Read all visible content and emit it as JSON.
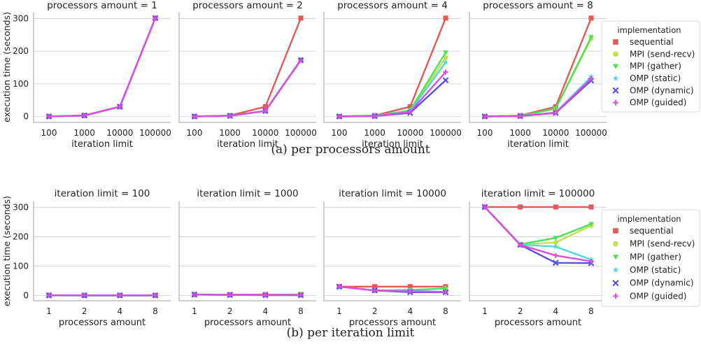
{
  "chart_data": [
    {
      "type": "line",
      "group": "a",
      "ylabel": "execution time (seconds)",
      "xlabel": "iteration limit",
      "x_ticks": [
        "100",
        "1000",
        "10000",
        "100000"
      ],
      "y_ticks": [
        0,
        100,
        200,
        300
      ],
      "ylim": [
        -18,
        320
      ],
      "panels": [
        {
          "title": "processors amount = 1",
          "series": [
            {
              "name": "sequential",
              "values": [
                0.3,
                3,
                30,
                301
              ]
            },
            {
              "name": "MPI (send-recv)",
              "values": [
                0.3,
                3,
                30,
                301
              ]
            },
            {
              "name": "MPI (gather)",
              "values": [
                0.3,
                3,
                30,
                301
              ]
            },
            {
              "name": "OMP (static)",
              "values": [
                0.3,
                3,
                30,
                301
              ]
            },
            {
              "name": "OMP (dynamic)",
              "values": [
                0.3,
                3,
                30,
                301
              ]
            },
            {
              "name": "OMP (guided)",
              "values": [
                0.3,
                3,
                30,
                301
              ]
            }
          ]
        },
        {
          "title": "processors amount = 2",
          "series": [
            {
              "name": "sequential",
              "values": [
                0.3,
                3,
                30,
                301
              ]
            },
            {
              "name": "MPI (send-recv)",
              "values": [
                0.2,
                2,
                17,
                174
              ]
            },
            {
              "name": "MPI (gather)",
              "values": [
                0.2,
                2,
                17,
                174
              ]
            },
            {
              "name": "OMP (static)",
              "values": [
                0.2,
                2,
                17,
                173
              ]
            },
            {
              "name": "OMP (dynamic)",
              "values": [
                0.2,
                2,
                17,
                172
              ]
            },
            {
              "name": "OMP (guided)",
              "values": [
                0.2,
                2,
                17,
                172
              ]
            }
          ]
        },
        {
          "title": "processors amount = 4",
          "series": [
            {
              "name": "sequential",
              "values": [
                0.3,
                3,
                30,
                301
              ]
            },
            {
              "name": "MPI (send-recv)",
              "values": [
                0.2,
                2,
                18,
                180
              ]
            },
            {
              "name": "MPI (gather)",
              "values": [
                0.2,
                2,
                19,
                196
              ]
            },
            {
              "name": "OMP (static)",
              "values": [
                0.2,
                2,
                16,
                166
              ]
            },
            {
              "name": "OMP (dynamic)",
              "values": [
                0.1,
                1,
                11,
                111
              ]
            },
            {
              "name": "OMP (guided)",
              "values": [
                0.1,
                1,
                14,
                136
              ]
            }
          ]
        },
        {
          "title": "processors amount = 8",
          "series": [
            {
              "name": "sequential",
              "values": [
                0.3,
                3,
                30,
                301
              ]
            },
            {
              "name": "MPI (send-recv)",
              "values": [
                0.2,
                2,
                24,
                238
              ]
            },
            {
              "name": "MPI (gather)",
              "values": [
                0.2,
                2,
                24,
                243
              ]
            },
            {
              "name": "OMP (static)",
              "values": [
                0.1,
                1,
                12,
                122
              ]
            },
            {
              "name": "OMP (dynamic)",
              "values": [
                0.1,
                1,
                11,
                110
              ]
            },
            {
              "name": "OMP (guided)",
              "values": [
                0.1,
                1,
                12,
                116
              ]
            }
          ]
        }
      ],
      "legend": {
        "title": "implementation",
        "placement": "right"
      }
    },
    {
      "type": "line",
      "group": "b",
      "ylabel": "execution time (seconds)",
      "xlabel": "processors amount",
      "x_ticks": [
        "1",
        "2",
        "4",
        "8"
      ],
      "y_ticks": [
        0,
        100,
        200,
        300
      ],
      "ylim": [
        -18,
        320
      ],
      "panels": [
        {
          "title": "iteration limit = 100",
          "series": [
            {
              "name": "sequential",
              "values": [
                0.3,
                0.3,
                0.3,
                0.3
              ]
            },
            {
              "name": "MPI (send-recv)",
              "values": [
                0.3,
                0.2,
                0.2,
                0.2
              ]
            },
            {
              "name": "MPI (gather)",
              "values": [
                0.3,
                0.2,
                0.2,
                0.2
              ]
            },
            {
              "name": "OMP (static)",
              "values": [
                0.3,
                0.2,
                0.2,
                0.1
              ]
            },
            {
              "name": "OMP (dynamic)",
              "values": [
                0.3,
                0.2,
                0.1,
                0.1
              ]
            },
            {
              "name": "OMP (guided)",
              "values": [
                0.3,
                0.2,
                0.1,
                0.1
              ]
            }
          ]
        },
        {
          "title": "iteration limit = 1000",
          "series": [
            {
              "name": "sequential",
              "values": [
                3,
                3,
                3,
                3
              ]
            },
            {
              "name": "MPI (send-recv)",
              "values": [
                3,
                2,
                2,
                2.4
              ]
            },
            {
              "name": "MPI (gather)",
              "values": [
                3,
                2,
                2,
                2.4
              ]
            },
            {
              "name": "OMP (static)",
              "values": [
                3,
                2,
                1.7,
                1.2
              ]
            },
            {
              "name": "OMP (dynamic)",
              "values": [
                3,
                1.7,
                1.1,
                1.1
              ]
            },
            {
              "name": "OMP (guided)",
              "values": [
                3,
                1.7,
                1.4,
                1.2
              ]
            }
          ]
        },
        {
          "title": "iteration limit = 10000",
          "series": [
            {
              "name": "sequential",
              "values": [
                30,
                30,
                30,
                30
              ]
            },
            {
              "name": "MPI (send-recv)",
              "values": [
                30,
                17,
                18,
                24
              ]
            },
            {
              "name": "MPI (gather)",
              "values": [
                30,
                17,
                19,
                24
              ]
            },
            {
              "name": "OMP (static)",
              "values": [
                30,
                17,
                16,
                12
              ]
            },
            {
              "name": "OMP (dynamic)",
              "values": [
                30,
                17,
                11,
                11
              ]
            },
            {
              "name": "OMP (guided)",
              "values": [
                30,
                17,
                14,
                12
              ]
            }
          ]
        },
        {
          "title": "iteration limit = 100000",
          "series": [
            {
              "name": "sequential",
              "values": [
                301,
                301,
                301,
                301
              ]
            },
            {
              "name": "MPI (send-recv)",
              "values": [
                301,
                174,
                180,
                238
              ]
            },
            {
              "name": "MPI (gather)",
              "values": [
                301,
                174,
                196,
                243
              ]
            },
            {
              "name": "OMP (static)",
              "values": [
                301,
                173,
                166,
                122
              ]
            },
            {
              "name": "OMP (dynamic)",
              "values": [
                301,
                172,
                111,
                110
              ]
            },
            {
              "name": "OMP (guided)",
              "values": [
                301,
                172,
                136,
                116
              ]
            }
          ]
        }
      ],
      "legend": {
        "title": "implementation",
        "placement": "right"
      }
    }
  ],
  "series_styles": [
    {
      "name": "sequential",
      "color": "#e05a5a",
      "marker": "square"
    },
    {
      "name": "MPI (send-recv)",
      "color": "#c4e04a",
      "marker": "circle"
    },
    {
      "name": "MPI (gather)",
      "color": "#4fe05a",
      "marker": "triangle-down"
    },
    {
      "name": "OMP (static)",
      "color": "#4fd8dc",
      "marker": "star"
    },
    {
      "name": "OMP (dynamic)",
      "color": "#5a4fe0",
      "marker": "x"
    },
    {
      "name": "OMP (guided)",
      "color": "#dc4fdc",
      "marker": "plus"
    }
  ],
  "captions": {
    "a": "(a) per processors amount",
    "b": "(b) per iteration limit"
  }
}
